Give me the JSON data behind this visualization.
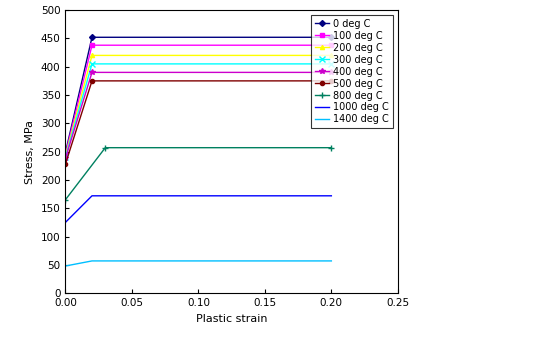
{
  "xlabel": "Plastic strain",
  "ylabel": "Stress, MPa",
  "xlim": [
    0,
    0.25
  ],
  "ylim": [
    0,
    500
  ],
  "xticks": [
    0,
    0.05,
    0.1,
    0.15,
    0.2,
    0.25
  ],
  "yticks": [
    0,
    50,
    100,
    150,
    200,
    250,
    300,
    350,
    400,
    450,
    500
  ],
  "series": [
    {
      "label": "0 deg C",
      "color": "#000080",
      "marker": "D",
      "markersize": 3,
      "x": [
        0,
        0.02,
        0.2
      ],
      "y": [
        248,
        452,
        452
      ]
    },
    {
      "label": "100 deg C",
      "color": "#FF00FF",
      "marker": "s",
      "markersize": 3,
      "x": [
        0,
        0.02,
        0.2
      ],
      "y": [
        245,
        438,
        438
      ]
    },
    {
      "label": "200 deg C",
      "color": "#FFFF00",
      "marker": "^",
      "markersize": 3,
      "x": [
        0,
        0.02,
        0.2
      ],
      "y": [
        242,
        420,
        420
      ]
    },
    {
      "label": "300 deg C",
      "color": "#00FFFF",
      "marker": "x",
      "markersize": 4,
      "x": [
        0,
        0.02,
        0.2
      ],
      "y": [
        240,
        405,
        405
      ]
    },
    {
      "label": "400 deg C",
      "color": "#FF00FF",
      "marker": "*",
      "markersize": 4,
      "x": [
        0,
        0.02,
        0.2
      ],
      "y": [
        238,
        390,
        390
      ]
    },
    {
      "label": "500 deg C",
      "color": "#800000",
      "marker": "o",
      "markersize": 3,
      "x": [
        0,
        0.02,
        0.2
      ],
      "y": [
        228,
        375,
        375
      ]
    },
    {
      "label": "800 deg C",
      "color": "#008080",
      "marker": "+",
      "markersize": 4,
      "x": [
        0,
        0.03,
        0.2
      ],
      "y": [
        165,
        257,
        257
      ]
    },
    {
      "label": "1000 deg C",
      "color": "#0000FF",
      "marker": null,
      "markersize": 0,
      "x": [
        0,
        0.02,
        0.2
      ],
      "y": [
        125,
        172,
        172
      ]
    },
    {
      "label": "1400 deg C",
      "color": "#00BFFF",
      "marker": null,
      "markersize": 0,
      "x": [
        0,
        0.02,
        0.2
      ],
      "y": [
        48,
        57,
        57
      ]
    }
  ],
  "background_color": "#FFFFFF",
  "legend_fontsize": 7,
  "legend_markerscale": 1.0
}
